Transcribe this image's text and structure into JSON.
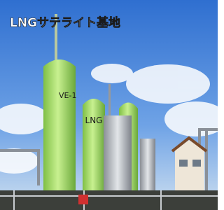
{
  "header": {
    "title": "LNGサテライト基地"
  },
  "tank_labels": [
    "VE-1",
    "LNG"
  ]
}
